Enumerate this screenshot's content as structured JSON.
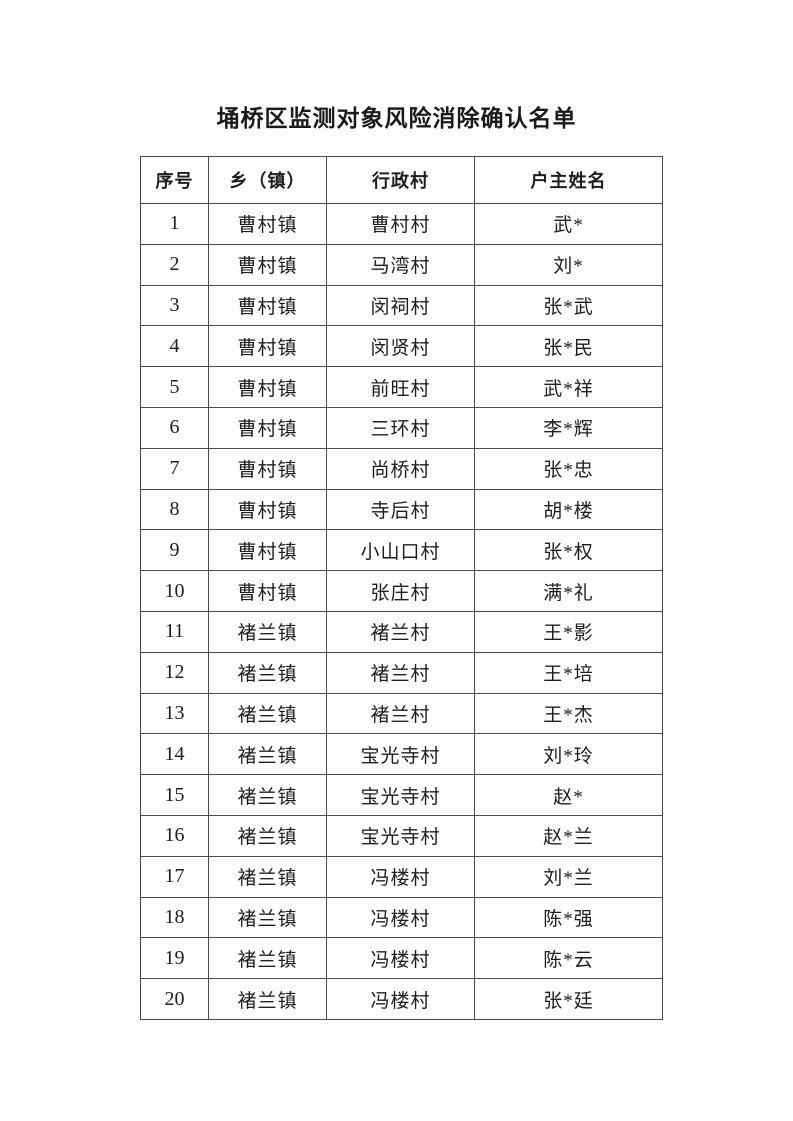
{
  "page": {
    "title": "埇桥区监测对象风险消除确认名单"
  },
  "table": {
    "headers": [
      {
        "id": "serial",
        "label": "序号"
      },
      {
        "id": "township",
        "label": "乡（镇）"
      },
      {
        "id": "village",
        "label": "行政村"
      },
      {
        "id": "household",
        "label": "户主姓名"
      }
    ],
    "rows": [
      {
        "serial": "1",
        "township": "曹村镇",
        "village": "曹村村",
        "household": "武*"
      },
      {
        "serial": "2",
        "township": "曹村镇",
        "village": "马湾村",
        "household": "刘*"
      },
      {
        "serial": "3",
        "township": "曹村镇",
        "village": "闵祠村",
        "household": "张*武"
      },
      {
        "serial": "4",
        "township": "曹村镇",
        "village": "闵贤村",
        "household": "张*民"
      },
      {
        "serial": "5",
        "township": "曹村镇",
        "village": "前旺村",
        "household": "武*祥"
      },
      {
        "serial": "6",
        "township": "曹村镇",
        "village": "三环村",
        "household": "李*辉"
      },
      {
        "serial": "7",
        "township": "曹村镇",
        "village": "尚桥村",
        "household": "张*忠"
      },
      {
        "serial": "8",
        "township": "曹村镇",
        "village": "寺后村",
        "household": "胡*楼"
      },
      {
        "serial": "9",
        "township": "曹村镇",
        "village": "小山口村",
        "household": "张*权"
      },
      {
        "serial": "10",
        "township": "曹村镇",
        "village": "张庄村",
        "household": "满*礼"
      },
      {
        "serial": "11",
        "township": "褚兰镇",
        "village": "褚兰村",
        "household": "王*影"
      },
      {
        "serial": "12",
        "township": "褚兰镇",
        "village": "褚兰村",
        "household": "王*培"
      },
      {
        "serial": "13",
        "township": "褚兰镇",
        "village": "褚兰村",
        "household": "王*杰"
      },
      {
        "serial": "14",
        "township": "褚兰镇",
        "village": "宝光寺村",
        "household": "刘*玲"
      },
      {
        "serial": "15",
        "township": "褚兰镇",
        "village": "宝光寺村",
        "household": "赵*"
      },
      {
        "serial": "16",
        "township": "褚兰镇",
        "village": "宝光寺村",
        "household": "赵*兰"
      },
      {
        "serial": "17",
        "township": "褚兰镇",
        "village": "冯楼村",
        "household": "刘*兰"
      },
      {
        "serial": "18",
        "township": "褚兰镇",
        "village": "冯楼村",
        "household": "陈*强"
      },
      {
        "serial": "19",
        "township": "褚兰镇",
        "village": "冯楼村",
        "household": "陈*云"
      },
      {
        "serial": "20",
        "township": "褚兰镇",
        "village": "冯楼村",
        "household": "张*廷"
      }
    ]
  }
}
